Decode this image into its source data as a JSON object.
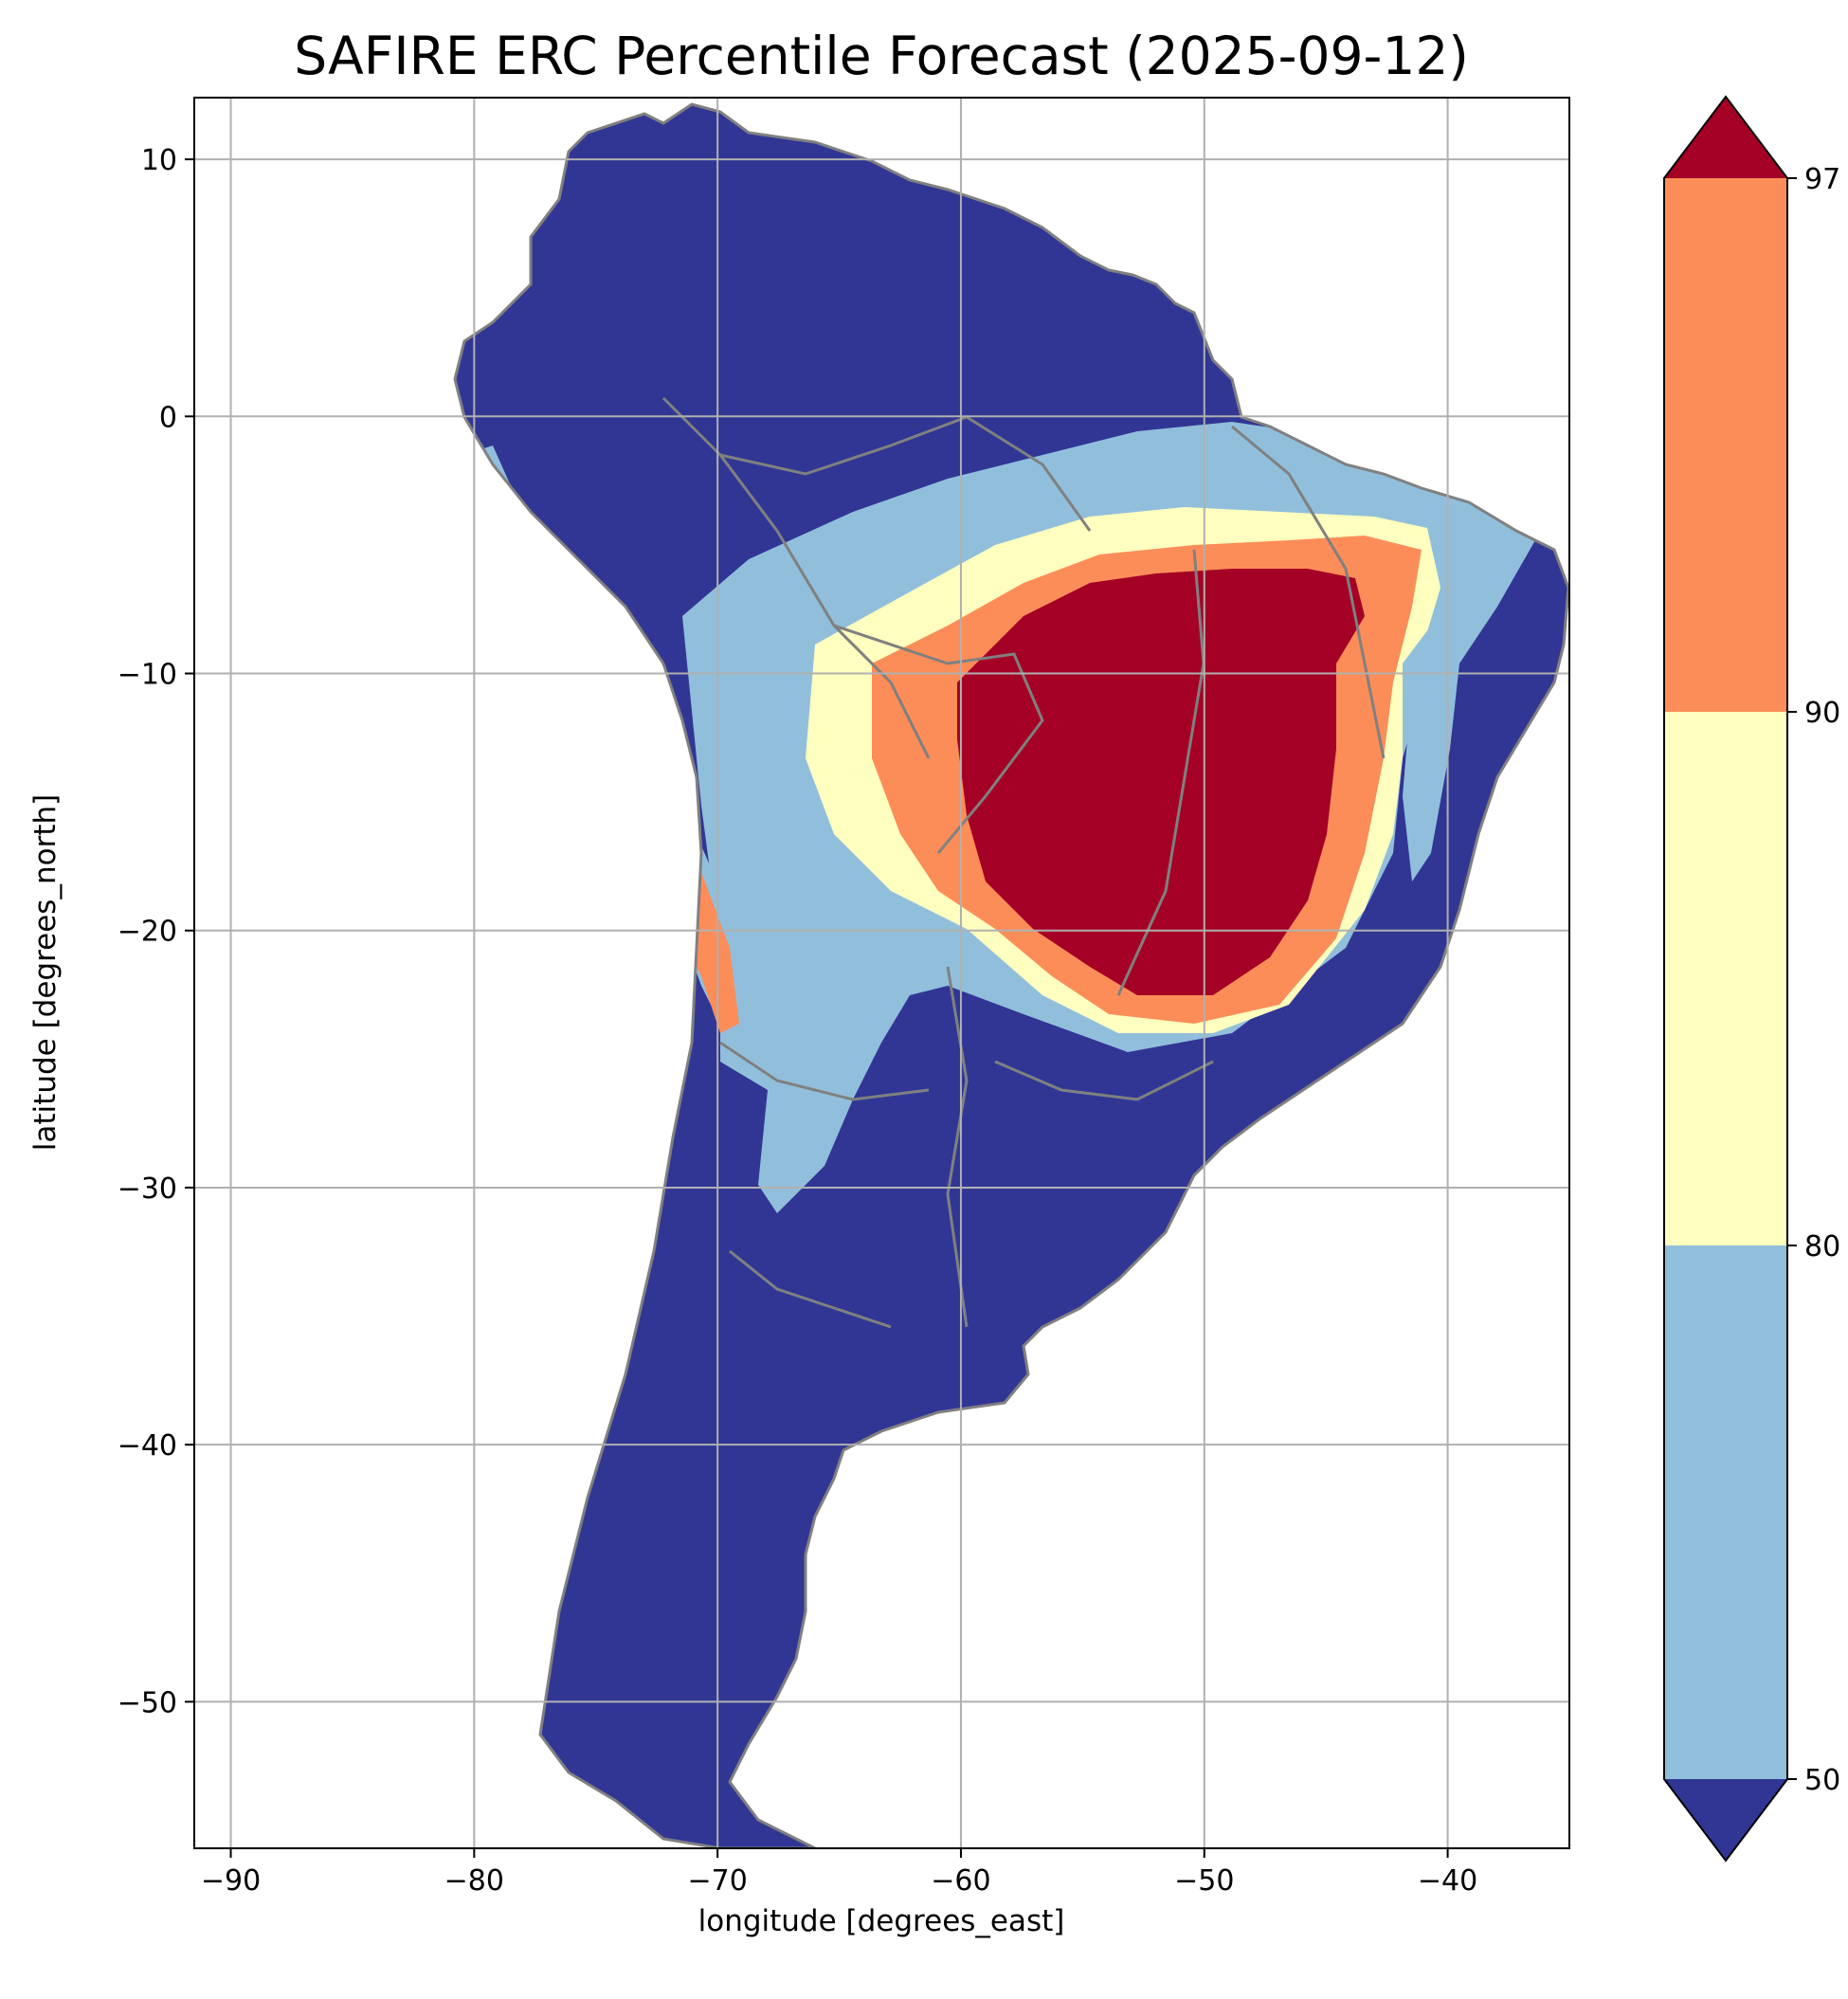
{
  "title": "SAFIRE ERC Percentile Forecast (2025-09-12)",
  "map": {
    "xlabel": "longitude [degrees_east]",
    "ylabel": "latitude [degrees_north]",
    "xlim": [
      -91.5,
      -35
    ],
    "ylim": [
      -55.7,
      12.4
    ],
    "x_ticks": [
      -90,
      -80,
      -70,
      -60,
      -50,
      -40
    ],
    "y_ticks": [
      10,
      0,
      -10,
      -20,
      -30,
      -40,
      -50
    ],
    "x_tick_labels": [
      "−90",
      "−80",
      "−70",
      "−60",
      "−50",
      "−40"
    ],
    "y_tick_labels": [
      "10",
      "0",
      "−10",
      "−20",
      "−30",
      "−40",
      "−50"
    ],
    "grid": true,
    "ocean_color": "#ffffff",
    "border_color": "#808080",
    "grid_color": "#b0b0b0"
  },
  "colorbar": {
    "ticks": [
      50,
      80,
      90,
      97
    ],
    "tick_labels": [
      "50",
      "80",
      "90",
      "97"
    ],
    "bins": [
      {
        "range": "<50",
        "color": "#313695"
      },
      {
        "range": "50-80",
        "color": "#91bfdb"
      },
      {
        "range": "80-90",
        "color": "#ffffbf"
      },
      {
        "range": "90-97",
        "color": "#fc8d59"
      },
      {
        "range": ">97",
        "color": "#a50026"
      }
    ]
  }
}
